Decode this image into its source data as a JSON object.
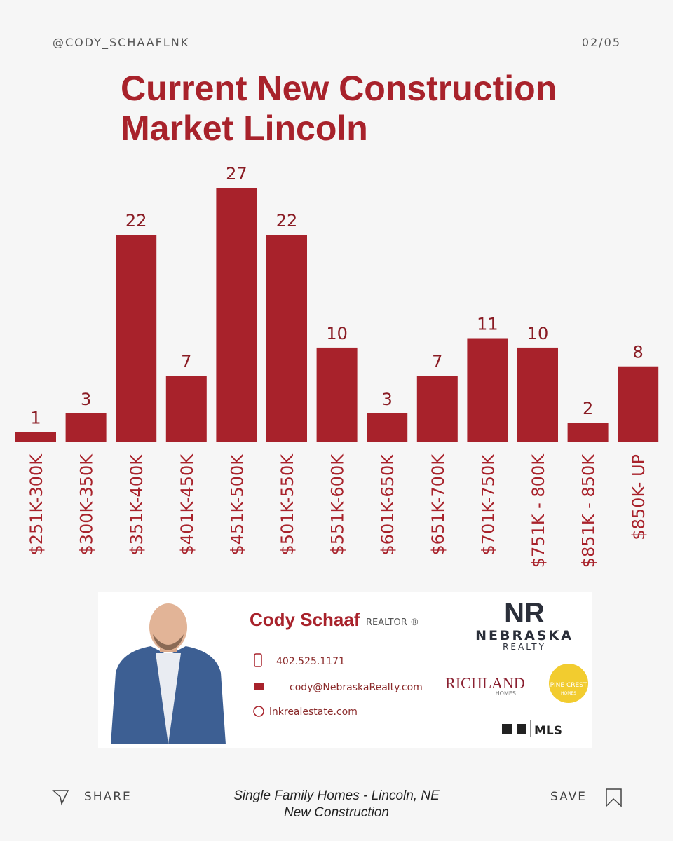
{
  "header": {
    "handle": "@CODY_SCHAAFLNK",
    "page": "02/05"
  },
  "chart_data": {
    "type": "bar",
    "title": [
      "Current New Construction",
      "Market Lincoln"
    ],
    "categories": [
      "$251K-300K",
      "$300K-350K",
      "$351K-400K",
      "$401K-450K",
      "$451K-500K",
      "$501K-550K",
      "$551K-600K",
      "$601K-650K",
      "$651K-700K",
      "$701K-750K",
      "$751K - 800K",
      "$851K - 850K",
      "$850K- UP"
    ],
    "values": [
      1,
      3,
      22,
      7,
      27,
      22,
      10,
      3,
      7,
      11,
      10,
      2,
      8
    ],
    "color": "#a8222b"
  },
  "card": {
    "name": "Cody Schaaf",
    "role": "REALTOR ®",
    "phone": "402.525.1171",
    "email": "cody@NebraskaRealty.com",
    "website": "lnkrealestate.com",
    "logos": {
      "nr": "NR",
      "nebraska": "NEBRASKA",
      "realty": "REALTY",
      "richland": "RICHLAND",
      "richland_sub": "HOMES",
      "pinecrest": "PINE CREST",
      "pinecrest_sub": "HOMES",
      "mls": "MLS"
    }
  },
  "footer": {
    "share": "SHARE",
    "caption": [
      "Single Family Homes - Lincoln, NE",
      "New Construction"
    ],
    "save": "SAVE"
  }
}
